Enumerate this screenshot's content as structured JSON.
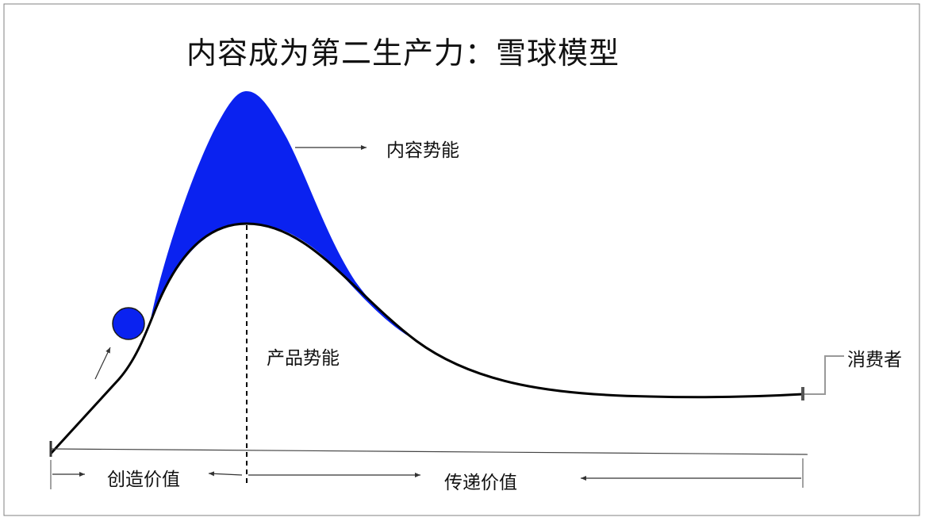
{
  "title": "内容成为第二生产力：雪球模型",
  "labels": {
    "content_potential": "内容势能",
    "product_potential": "产品势能",
    "consumer": "消费者",
    "create_value": "创造价值",
    "deliver_value": "传递价值"
  },
  "colors": {
    "blue_fill": "#0a22f0",
    "curve": "#000000",
    "frame": "#808080",
    "arrow": "#333333",
    "connector": "#999999"
  },
  "icons": {
    "snowball": "blue-circle"
  }
}
